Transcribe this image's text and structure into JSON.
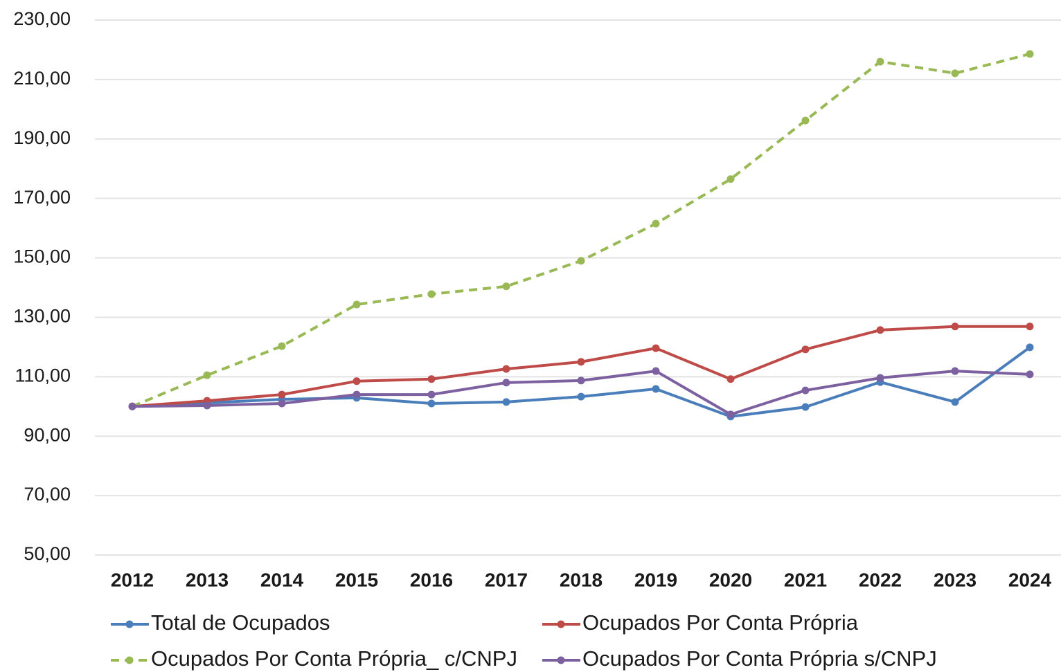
{
  "chart_data": {
    "type": "line",
    "categories": [
      "2012",
      "2013",
      "2014",
      "2015",
      "2016",
      "2017",
      "2018",
      "2019",
      "2020",
      "2021",
      "2022",
      "2023",
      "2024"
    ],
    "series": [
      {
        "name": "Total de Ocupados",
        "color": "#4a7ebb",
        "dashed": false,
        "values": [
          100,
          101.2,
          102.4,
          102.9,
          101,
          101.5,
          103.3,
          105.9,
          96.6,
          99.8,
          108.2,
          101.5,
          119.9
        ]
      },
      {
        "name": "Ocupados Por Conta Própria",
        "color": "#be4b48",
        "dashed": false,
        "values": [
          100,
          101.9,
          104,
          108.5,
          109.2,
          112.6,
          115,
          119.6,
          109.2,
          119.2,
          125.7,
          126.9,
          126.9
        ]
      },
      {
        "name": "Ocupados Por Conta Própria_ c/CNPJ",
        "color": "#98b954",
        "dashed": true,
        "values": [
          100,
          110.5,
          120.3,
          134.3,
          137.8,
          140.4,
          149,
          161.5,
          176.5,
          196.2,
          216,
          212.1,
          218.6
        ]
      },
      {
        "name": "Ocupados Por Conta Própria s/CNPJ",
        "color": "#7d60a0",
        "dashed": false,
        "values": [
          100,
          100.3,
          101,
          104,
          104,
          108,
          108.7,
          111.9,
          97.3,
          105.4,
          109.6,
          111.9,
          110.8
        ]
      }
    ],
    "ylim": [
      50,
      230
    ],
    "yticks": [
      {
        "value": 50,
        "label": "50,00"
      },
      {
        "value": 70,
        "label": "70,00"
      },
      {
        "value": 90,
        "label": "90,00"
      },
      {
        "value": 110,
        "label": "110,00"
      },
      {
        "value": 130,
        "label": "130,00"
      },
      {
        "value": 150,
        "label": "150,00"
      },
      {
        "value": 170,
        "label": "170,00"
      },
      {
        "value": 190,
        "label": "190,00"
      },
      {
        "value": 210,
        "label": "210,00"
      },
      {
        "value": 230,
        "label": "230,00"
      }
    ],
    "grid": true,
    "legend": "bottom"
  }
}
